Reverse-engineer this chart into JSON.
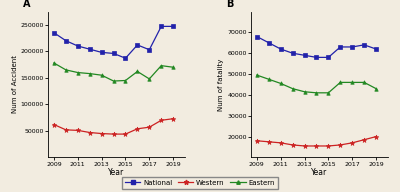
{
  "accident_years": [
    2009,
    2010,
    2011,
    2012,
    2013,
    2014,
    2015,
    2016,
    2017,
    2018,
    2019
  ],
  "accident_national": [
    235000,
    220000,
    210000,
    204000,
    198000,
    196000,
    187000,
    212000,
    203000,
    247000,
    247000
  ],
  "accident_western": [
    62000,
    52000,
    51000,
    47000,
    45000,
    44000,
    44000,
    54000,
    57000,
    70000,
    73000
  ],
  "accident_eastern": [
    178000,
    165000,
    160000,
    158000,
    155000,
    144000,
    145000,
    162000,
    148000,
    173000,
    170000
  ],
  "fatality_years": [
    2009,
    2010,
    2011,
    2012,
    2013,
    2014,
    2015,
    2016,
    2017,
    2018,
    2019
  ],
  "fatality_national": [
    68000,
    65000,
    62000,
    60000,
    59000,
    58000,
    58000,
    63000,
    63000,
    64000,
    62000
  ],
  "fatality_western": [
    18000,
    17500,
    17000,
    16000,
    15500,
    15500,
    15500,
    16000,
    17000,
    18500,
    20000
  ],
  "fatality_eastern": [
    49500,
    47500,
    45500,
    43000,
    41500,
    41000,
    41000,
    46000,
    46000,
    46000,
    43000
  ],
  "national_color": "#2222aa",
  "western_color": "#cc2222",
  "eastern_color": "#228822",
  "accident_ylabel": "Num of Accident",
  "fatality_ylabel": "Num of fatality",
  "xlabel": "Year",
  "label_A": "A",
  "label_B": "B",
  "legend_national": "National",
  "legend_western": "Western",
  "legend_eastern": "Eastern",
  "accident_ylim": [
    0,
    275000
  ],
  "fatality_ylim": [
    10000,
    80000
  ],
  "accident_yticks": [
    50000,
    100000,
    150000,
    200000,
    250000
  ],
  "fatality_yticks": [
    20000,
    30000,
    40000,
    50000,
    60000,
    70000
  ],
  "xticks": [
    2009,
    2011,
    2013,
    2015,
    2017,
    2019
  ],
  "bg_color": "#f2ece0"
}
